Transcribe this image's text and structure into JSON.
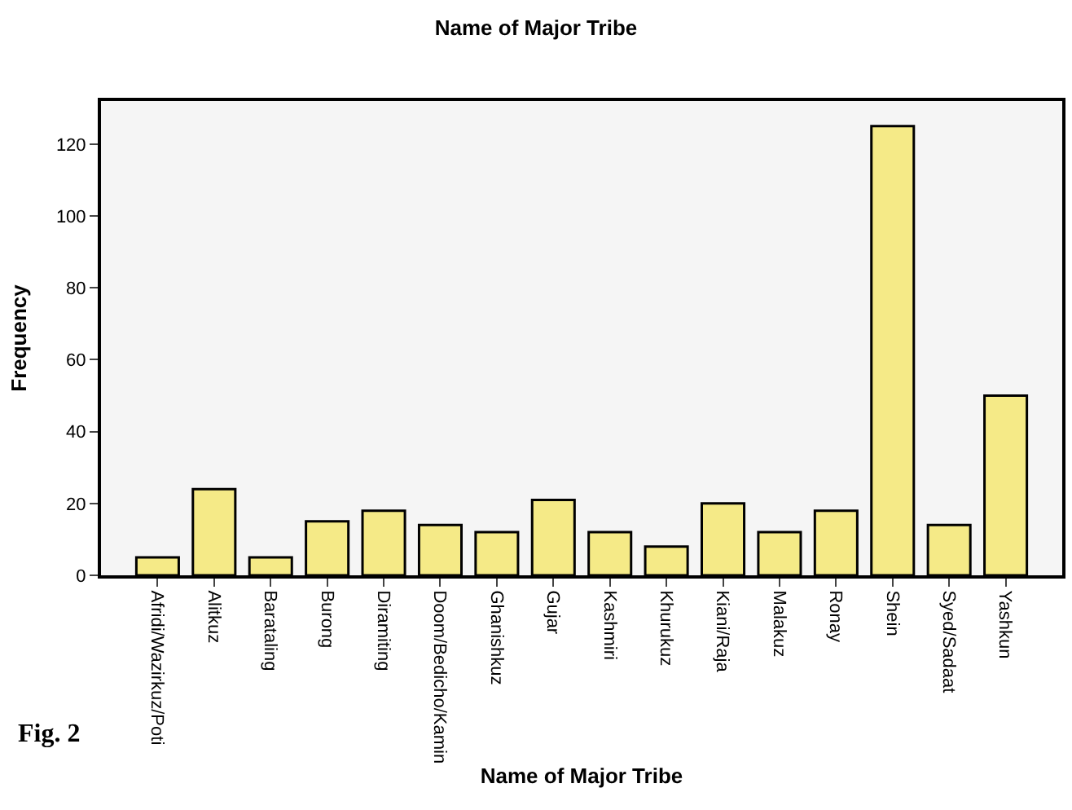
{
  "chart_data": {
    "type": "bar",
    "title": "Name of Major Tribe",
    "xlabel": "Name of Major Tribe",
    "ylabel": "Frequency",
    "categories": [
      "Afridi/Wazirkuz/Poti",
      "Alitkuz",
      "Barataling",
      "Burong",
      "Diramiting",
      "Doom/Bedicho/Kamin",
      "Ghanishkuz",
      "Gujar",
      "Kashmiri",
      "Khurukuz",
      "Kiani/Raja",
      "Malakuz",
      "Ronay",
      "Shein",
      "Syed/Sadaat",
      "Yashkun"
    ],
    "values": [
      5,
      24,
      5,
      15,
      18,
      14,
      12,
      21,
      12,
      8,
      20,
      12,
      18,
      125,
      14,
      50
    ],
    "color": "#f5ea87",
    "ylim": [
      0,
      132
    ],
    "yticks": [
      0,
      20,
      40,
      60,
      80,
      100,
      120
    ],
    "grid": false,
    "legend": false,
    "annotations": [
      "Fig. 2"
    ]
  }
}
